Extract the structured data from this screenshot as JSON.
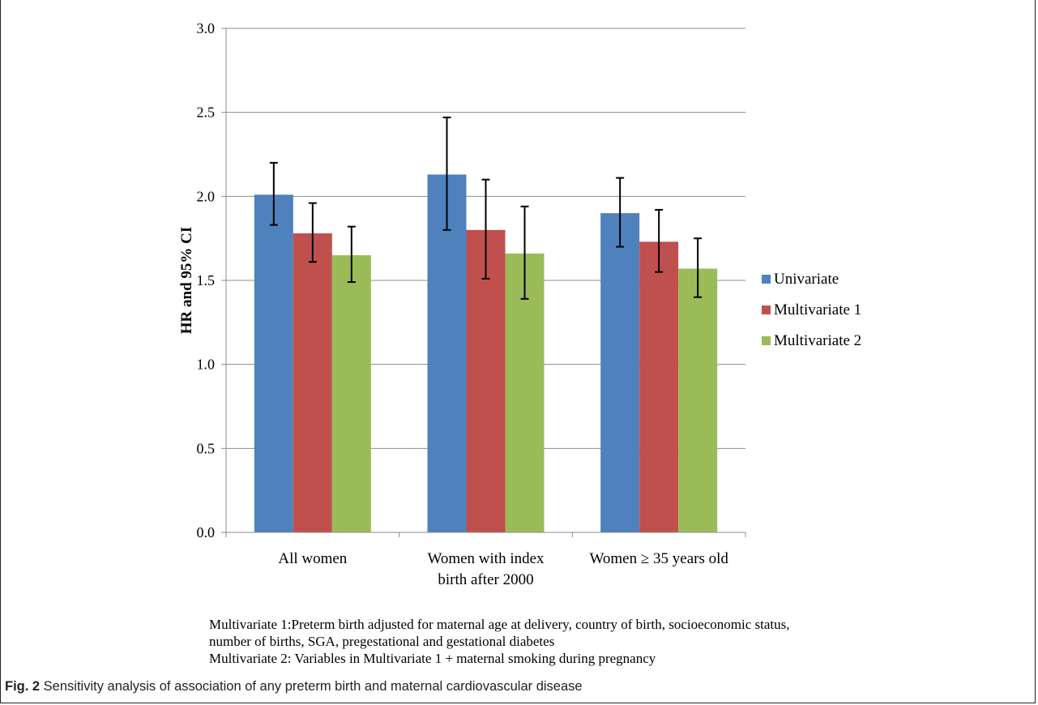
{
  "colors": {
    "univariate": "#4f81bd",
    "multivariate1": "#c0504d",
    "multivariate2": "#9bbb59",
    "grid": "#8c8c8c",
    "axis": "#8c8c8c"
  },
  "chart_data": {
    "type": "bar",
    "title": "",
    "xlabel": "",
    "ylabel": "HR and 95% CI",
    "ylim": [
      0.0,
      3.0
    ],
    "yticks": [
      "0.0",
      "0.5",
      "1.0",
      "1.5",
      "2.0",
      "2.5",
      "3.0"
    ],
    "grid": true,
    "legend_position": "right",
    "categories": [
      [
        "All women"
      ],
      [
        "Women with index",
        "birth after 2000"
      ],
      [
        "Women ≥ 35 years old"
      ]
    ],
    "series": [
      {
        "name": "Univariate",
        "color": "#4f81bd",
        "values": [
          2.01,
          2.13,
          1.9
        ],
        "ci_low": [
          1.83,
          1.8,
          1.7
        ],
        "ci_high": [
          2.2,
          2.47,
          2.11
        ]
      },
      {
        "name": "Multivariate 1",
        "color": "#c0504d",
        "values": [
          1.78,
          1.8,
          1.73
        ],
        "ci_low": [
          1.61,
          1.51,
          1.55
        ],
        "ci_high": [
          1.96,
          2.1,
          1.92
        ]
      },
      {
        "name": "Multivariate 2",
        "color": "#9bbb59",
        "values": [
          1.65,
          1.66,
          1.57
        ],
        "ci_low": [
          1.49,
          1.39,
          1.4
        ],
        "ci_high": [
          1.82,
          1.94,
          1.75
        ]
      }
    ]
  },
  "notes": {
    "line1": "Multivariate 1:Preterm birth adjusted for maternal age at delivery, country of birth, socioeconomic status,",
    "line2": "number of births, SGA, pregestational and gestational diabetes",
    "line3": "Multivariate 2: Variables in Multivariate 1 + maternal smoking during pregnancy"
  },
  "caption": {
    "label": "Fig. 2",
    "text": " Sensitivity analysis of association of any preterm birth and maternal cardiovascular disease"
  }
}
